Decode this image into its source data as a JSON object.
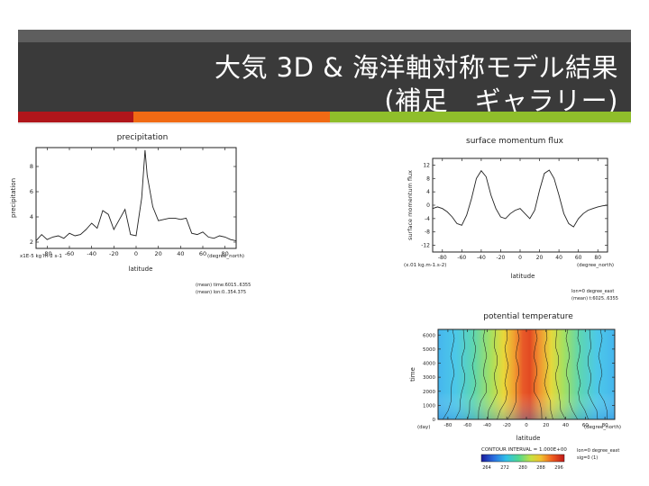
{
  "slide": {
    "title_line1": "大気 3D & 海洋軸対称モデル結果",
    "title_line2": "(補足　ギャラリー)"
  },
  "colors": {
    "title_band": "#3a3a3a",
    "accent_red": "#b0161b",
    "accent_orange": "#f06a14",
    "accent_green": "#8fbe2b"
  },
  "chart_data": [
    {
      "type": "line",
      "title": "precipitation",
      "xlabel": "latitude",
      "ylabel": "precipitation",
      "unit_note": "x1E-5 kg m-2 s-1",
      "axis_unit": "(degree_north)",
      "xlim": [
        -90,
        90
      ],
      "ylim": [
        1.5,
        9.5
      ],
      "xticks": [
        -80,
        -60,
        -40,
        -20,
        0,
        20,
        40,
        60,
        80
      ],
      "yticks": [
        2,
        4,
        6,
        8
      ],
      "x": [
        -90,
        -85,
        -80,
        -75,
        -70,
        -65,
        -60,
        -55,
        -50,
        -45,
        -40,
        -35,
        -30,
        -25,
        -20,
        -15,
        -10,
        -5,
        0,
        5,
        8,
        10,
        15,
        20,
        25,
        30,
        35,
        40,
        45,
        50,
        55,
        60,
        65,
        70,
        75,
        80,
        85,
        90
      ],
      "values": [
        2.1,
        2.6,
        2.2,
        2.4,
        2.5,
        2.3,
        2.7,
        2.5,
        2.6,
        3.0,
        3.5,
        3.1,
        4.5,
        4.2,
        3.0,
        3.8,
        4.6,
        2.6,
        2.5,
        5.5,
        9.3,
        7.3,
        4.8,
        3.7,
        3.8,
        3.9,
        3.9,
        3.8,
        3.9,
        2.7,
        2.6,
        2.8,
        2.4,
        2.3,
        2.5,
        2.4,
        2.2,
        2.1
      ],
      "footnotes": [
        "(mean) time:6015..6355",
        "(mean) lon:0..354.375"
      ]
    },
    {
      "type": "line",
      "title": "surface momentum flux",
      "xlabel": "latitude",
      "ylabel": "surface momentum flux",
      "unit_note": "(x.01 kg.m-1.s-2)",
      "axis_unit": "(degree_north)",
      "xlim": [
        -90,
        90
      ],
      "ylim": [
        -14,
        14
      ],
      "xticks": [
        -80,
        -60,
        -40,
        -20,
        0,
        20,
        40,
        60,
        80
      ],
      "yticks": [
        -12,
        -8,
        -4,
        0,
        4,
        8,
        12
      ],
      "x": [
        -90,
        -85,
        -80,
        -75,
        -70,
        -65,
        -60,
        -55,
        -50,
        -45,
        -40,
        -35,
        -30,
        -25,
        -20,
        -15,
        -10,
        -5,
        0,
        5,
        10,
        15,
        20,
        25,
        30,
        35,
        40,
        45,
        50,
        55,
        60,
        65,
        70,
        75,
        80,
        85,
        90
      ],
      "values": [
        -1.0,
        -0.5,
        -1.0,
        -2.0,
        -3.5,
        -5.5,
        -6.0,
        -3.0,
        2.0,
        8.0,
        10.3,
        8.5,
        3.0,
        -1.0,
        -3.5,
        -4.0,
        -2.5,
        -1.5,
        -1.0,
        -2.5,
        -4.0,
        -1.5,
        4.5,
        9.5,
        10.5,
        8.0,
        3.0,
        -2.5,
        -5.5,
        -6.5,
        -4.0,
        -2.5,
        -1.5,
        -1.0,
        -0.5,
        -0.2,
        0.0
      ],
      "footnotes": [
        "lon=0 degree_east",
        "(mean) t:6025..6355"
      ]
    },
    {
      "type": "heatmap",
      "title": "potential temperature",
      "xlabel": "latitude",
      "ylabel": "time",
      "x_unit": "(degree_north)",
      "y_unit": "(day)",
      "xlim": [
        -90,
        90
      ],
      "ylim": [
        0,
        6400
      ],
      "xticks": [
        -80,
        -60,
        -40,
        -20,
        0,
        20,
        40,
        60,
        80
      ],
      "yticks": [
        0,
        1000,
        2000,
        3000,
        4000,
        5000,
        6000
      ],
      "contour_interval_label": "CONTOUR INTERVAL = 1.000E+00",
      "colorbar_ticks": [
        "264",
        "272",
        "280",
        "288",
        "296"
      ],
      "colorbar_range": [
        264,
        300
      ],
      "footnotes": [
        "lon=0 degree_east",
        "sig=0 (1)"
      ]
    }
  ]
}
